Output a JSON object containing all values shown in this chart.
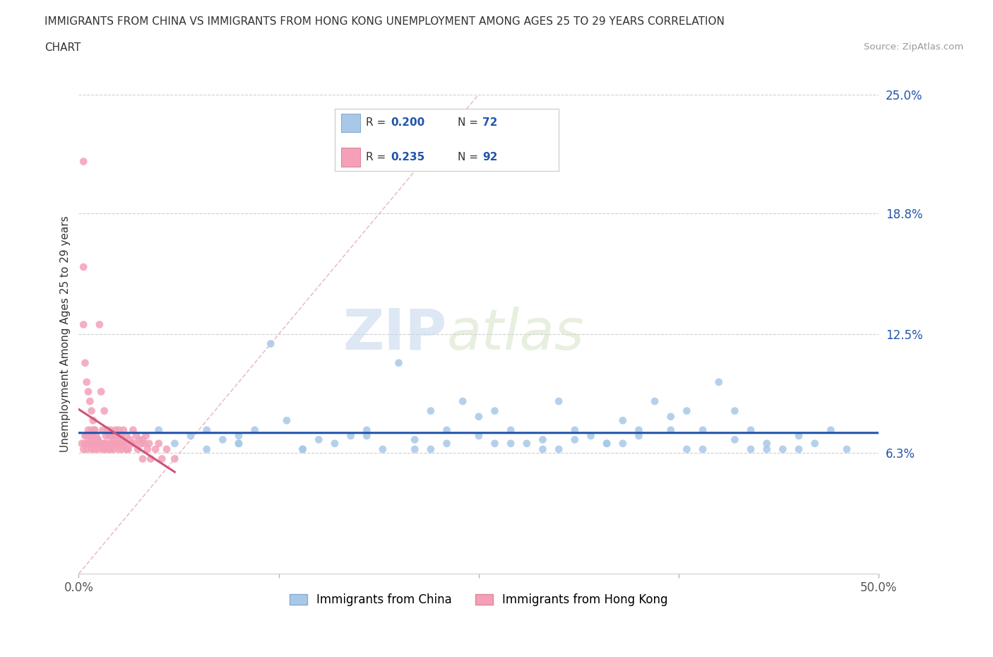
{
  "title_line1": "IMMIGRANTS FROM CHINA VS IMMIGRANTS FROM HONG KONG UNEMPLOYMENT AMONG AGES 25 TO 29 YEARS CORRELATION",
  "title_line2": "CHART",
  "source_text": "Source: ZipAtlas.com",
  "watermark_zip": "ZIP",
  "watermark_atlas": "atlas",
  "xlabel": "",
  "ylabel": "Unemployment Among Ages 25 to 29 years",
  "xlim": [
    0.0,
    0.5
  ],
  "ylim": [
    0.0,
    0.25
  ],
  "ytick_vals": [
    0.0,
    0.063,
    0.125,
    0.188,
    0.25
  ],
  "ytick_labels": [
    "",
    "6.3%",
    "12.5%",
    "18.8%",
    "25.0%"
  ],
  "xtick_vals": [
    0.0,
    0.125,
    0.25,
    0.375,
    0.5
  ],
  "xtick_labels": [
    "0.0%",
    "",
    "",
    "",
    "50.0%"
  ],
  "legend_R1": "0.200",
  "legend_N1": "72",
  "legend_R2": "0.235",
  "legend_N2": "92",
  "color_china": "#a8c8e8",
  "color_hk": "#f4a0b8",
  "trend_color_china": "#2255aa",
  "trend_color_hk": "#cc5577",
  "diagonal_color": "#e8b8c8",
  "text_color_label": "#2255aa",
  "text_color_black": "#333333",
  "china_x": [
    0.01,
    0.02,
    0.03,
    0.04,
    0.05,
    0.06,
    0.07,
    0.08,
    0.08,
    0.09,
    0.1,
    0.1,
    0.11,
    0.12,
    0.13,
    0.14,
    0.15,
    0.16,
    0.17,
    0.18,
    0.19,
    0.2,
    0.21,
    0.22,
    0.23,
    0.24,
    0.25,
    0.26,
    0.27,
    0.28,
    0.29,
    0.3,
    0.31,
    0.32,
    0.33,
    0.34,
    0.35,
    0.36,
    0.37,
    0.38,
    0.39,
    0.4,
    0.41,
    0.42,
    0.43,
    0.44,
    0.45,
    0.46,
    0.47,
    0.48,
    0.21,
    0.23,
    0.25,
    0.27,
    0.29,
    0.31,
    0.33,
    0.35,
    0.37,
    0.39,
    0.41,
    0.43,
    0.45,
    0.1,
    0.14,
    0.18,
    0.22,
    0.26,
    0.3,
    0.34,
    0.38,
    0.42
  ],
  "china_y": [
    0.068,
    0.072,
    0.065,
    0.07,
    0.075,
    0.068,
    0.072,
    0.065,
    0.075,
    0.07,
    0.072,
    0.068,
    0.075,
    0.12,
    0.08,
    0.065,
    0.07,
    0.068,
    0.072,
    0.075,
    0.065,
    0.11,
    0.07,
    0.085,
    0.075,
    0.09,
    0.082,
    0.085,
    0.075,
    0.068,
    0.07,
    0.09,
    0.075,
    0.072,
    0.068,
    0.08,
    0.075,
    0.09,
    0.082,
    0.085,
    0.075,
    0.1,
    0.085,
    0.075,
    0.068,
    0.065,
    0.072,
    0.068,
    0.075,
    0.065,
    0.065,
    0.068,
    0.072,
    0.068,
    0.065,
    0.07,
    0.068,
    0.072,
    0.075,
    0.065,
    0.07,
    0.065,
    0.065,
    0.068,
    0.065,
    0.072,
    0.065,
    0.068,
    0.065,
    0.068,
    0.065,
    0.065
  ],
  "hk_x": [
    0.002,
    0.003,
    0.004,
    0.004,
    0.005,
    0.005,
    0.005,
    0.006,
    0.006,
    0.007,
    0.007,
    0.008,
    0.008,
    0.008,
    0.009,
    0.009,
    0.01,
    0.01,
    0.011,
    0.011,
    0.012,
    0.012,
    0.013,
    0.013,
    0.014,
    0.014,
    0.015,
    0.015,
    0.016,
    0.016,
    0.017,
    0.017,
    0.018,
    0.018,
    0.019,
    0.019,
    0.02,
    0.02,
    0.021,
    0.021,
    0.022,
    0.022,
    0.023,
    0.023,
    0.024,
    0.024,
    0.025,
    0.025,
    0.026,
    0.026,
    0.027,
    0.027,
    0.028,
    0.028,
    0.029,
    0.03,
    0.031,
    0.032,
    0.033,
    0.034,
    0.035,
    0.036,
    0.037,
    0.038,
    0.039,
    0.04,
    0.041,
    0.042,
    0.043,
    0.044,
    0.045,
    0.048,
    0.05,
    0.052,
    0.055,
    0.06,
    0.003,
    0.003,
    0.003,
    0.004,
    0.005,
    0.006,
    0.007,
    0.008,
    0.009,
    0.01,
    0.012,
    0.014,
    0.016,
    0.02,
    0.025,
    0.03
  ],
  "hk_y": [
    0.068,
    0.065,
    0.068,
    0.072,
    0.065,
    0.068,
    0.072,
    0.068,
    0.075,
    0.068,
    0.072,
    0.065,
    0.07,
    0.075,
    0.068,
    0.072,
    0.065,
    0.075,
    0.068,
    0.072,
    0.065,
    0.07,
    0.13,
    0.068,
    0.095,
    0.068,
    0.065,
    0.075,
    0.068,
    0.085,
    0.068,
    0.072,
    0.065,
    0.075,
    0.068,
    0.072,
    0.065,
    0.075,
    0.068,
    0.072,
    0.065,
    0.07,
    0.068,
    0.075,
    0.068,
    0.072,
    0.065,
    0.075,
    0.068,
    0.072,
    0.065,
    0.07,
    0.068,
    0.075,
    0.068,
    0.072,
    0.065,
    0.07,
    0.068,
    0.075,
    0.068,
    0.072,
    0.065,
    0.07,
    0.068,
    0.06,
    0.068,
    0.072,
    0.065,
    0.068,
    0.06,
    0.065,
    0.068,
    0.06,
    0.065,
    0.06,
    0.215,
    0.16,
    0.13,
    0.11,
    0.1,
    0.095,
    0.09,
    0.085,
    0.08,
    0.075,
    0.07,
    0.068,
    0.065,
    0.065,
    0.068,
    0.065
  ]
}
